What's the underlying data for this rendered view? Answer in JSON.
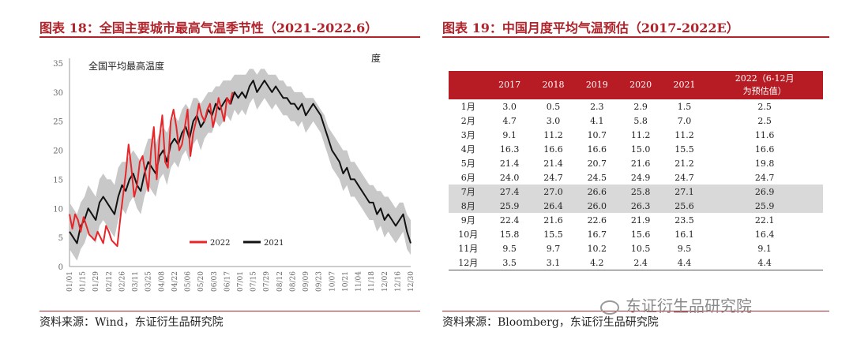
{
  "left": {
    "title": "图表 18：全国主要城市最高气温季节性（2021-2022.6）",
    "source": "资料来源：Wind，东证衍生品研究院"
  },
  "right": {
    "title": "图表 19：中国月度平均气温预估（2017-2022E）",
    "source": "资料来源：Bloomberg，东证衍生品研究院"
  },
  "watermark": "东证衍生品研究院",
  "chart_data": [
    {
      "type": "line",
      "title": "全国平均最高温度",
      "ylabel": "度",
      "ylim": [
        0,
        35
      ],
      "yticks": [
        0,
        5,
        10,
        15,
        20,
        25,
        30,
        35
      ],
      "xticks": [
        "01/01",
        "01/15",
        "01/29",
        "02/12",
        "02/26",
        "03/11",
        "03/25",
        "04/08",
        "04/22",
        "05/06",
        "05/20",
        "06/03",
        "06/17",
        "07/01",
        "07/15",
        "07/29",
        "08/12",
        "08/26",
        "09/09",
        "09/23",
        "10/07",
        "10/21",
        "11/04",
        "11/18",
        "12/02",
        "12/16",
        "12/30"
      ],
      "legend": [
        "2022",
        "2021"
      ],
      "colors": {
        "2022": "#e8262a",
        "2021": "#111111",
        "range": "#c8c8c8"
      },
      "series": [
        {
          "name": "2022",
          "x": [
            0,
            3,
            6,
            9,
            12,
            15,
            18,
            21,
            24,
            27,
            30,
            33,
            36,
            39,
            42,
            45,
            48,
            51,
            54,
            57,
            60,
            63,
            66,
            69,
            72,
            75,
            78,
            81,
            84,
            87,
            90,
            93,
            96,
            99,
            102,
            105,
            108,
            111,
            114,
            117,
            120,
            123,
            126,
            129,
            132,
            135,
            138,
            141,
            144,
            147,
            150,
            153,
            156,
            159,
            162,
            165,
            168,
            171,
            174
          ],
          "values": [
            9,
            6.5,
            9,
            8,
            6,
            8.5,
            7,
            5.5,
            5,
            4.5,
            6,
            5,
            4,
            7,
            6,
            4.5,
            4,
            3.5,
            8,
            12,
            16,
            21,
            17,
            12,
            14,
            18,
            19,
            16,
            13,
            20,
            24,
            15,
            22,
            26,
            18,
            17,
            25,
            27,
            24,
            20,
            21,
            24,
            27,
            19,
            23,
            25,
            28,
            26,
            25,
            27,
            28,
            24,
            26,
            29,
            27,
            25,
            29,
            28,
            30
          ]
        },
        {
          "name": "2021",
          "x": [
            0,
            4,
            8,
            12,
            16,
            20,
            24,
            28,
            32,
            36,
            40,
            44,
            48,
            52,
            56,
            60,
            64,
            68,
            72,
            76,
            80,
            84,
            88,
            92,
            96,
            100,
            104,
            108,
            112,
            116,
            120,
            124,
            128,
            132,
            136,
            140,
            144,
            148,
            152,
            156,
            160,
            164,
            168,
            172,
            176,
            180,
            184,
            188,
            192,
            196,
            200,
            204,
            208,
            212,
            216,
            220,
            224,
            228,
            232,
            236,
            240,
            244,
            248,
            252,
            256,
            260,
            264,
            268,
            272,
            276,
            280,
            284,
            288,
            292,
            296,
            300,
            304,
            308,
            312,
            316,
            320,
            324,
            328,
            332,
            336,
            340,
            344,
            348,
            352,
            356,
            360,
            364
          ],
          "values": [
            6,
            5,
            4,
            7,
            8,
            10,
            9,
            8,
            11,
            12,
            11,
            10,
            9,
            12,
            14,
            13,
            15,
            16,
            14,
            13,
            16,
            18,
            17,
            16,
            19,
            20,
            18,
            21,
            22,
            21,
            23,
            24,
            22,
            25,
            26,
            24,
            25,
            27,
            26,
            28,
            27,
            28,
            29,
            28,
            30,
            29,
            30,
            29,
            31,
            32,
            30,
            31,
            32,
            31,
            30,
            31,
            30,
            29,
            29,
            28,
            28,
            27,
            28,
            26,
            27,
            28,
            27,
            26,
            24,
            22,
            20,
            19,
            18,
            16,
            17,
            15,
            15,
            14,
            13,
            12,
            11,
            11,
            9,
            10,
            8,
            9,
            8,
            7,
            8,
            9,
            6,
            4
          ]
        },
        {
          "name": "range",
          "upper": [
            11,
            10,
            9,
            11,
            12,
            14,
            13,
            12,
            15,
            16,
            15,
            15,
            14,
            17,
            18,
            18,
            19,
            20,
            19,
            18,
            20,
            22,
            22,
            21,
            23,
            24,
            23,
            25,
            26,
            25,
            27,
            28,
            27,
            29,
            29,
            28,
            29,
            30,
            30,
            31,
            31,
            32,
            32,
            32,
            33,
            33,
            33,
            33,
            34,
            34,
            33,
            34,
            34,
            33,
            33,
            33,
            32,
            32,
            31,
            31,
            30,
            30,
            30,
            29,
            29,
            29,
            28,
            27,
            26,
            24,
            23,
            22,
            21,
            20,
            20,
            18,
            18,
            17,
            16,
            15,
            14,
            14,
            13,
            13,
            12,
            12,
            11,
            10,
            11,
            11,
            9,
            8
          ],
          "lower": [
            3,
            2,
            1,
            3,
            4,
            6,
            5,
            4,
            7,
            8,
            7,
            6,
            5,
            8,
            10,
            9,
            11,
            12,
            10,
            9,
            12,
            14,
            13,
            12,
            15,
            16,
            14,
            17,
            18,
            17,
            19,
            20,
            18,
            21,
            22,
            20,
            22,
            23,
            23,
            25,
            24,
            25,
            26,
            25,
            27,
            26,
            27,
            26,
            28,
            29,
            27,
            28,
            29,
            28,
            27,
            28,
            27,
            26,
            26,
            25,
            25,
            24,
            25,
            23,
            24,
            25,
            24,
            23,
            21,
            19,
            17,
            16,
            15,
            13,
            14,
            12,
            12,
            11,
            10,
            9,
            8,
            8,
            6,
            7,
            5,
            6,
            5,
            4,
            5,
            6,
            3,
            2
          ]
        }
      ]
    },
    {
      "type": "table",
      "columns": [
        "",
        "2017",
        "2018",
        "2019",
        "2020",
        "2021",
        "2022（6-12月为预估值）"
      ],
      "rows": [
        [
          "1月",
          "3.0",
          "0.5",
          "2.3",
          "2.9",
          "1.5",
          "2.5"
        ],
        [
          "2月",
          "4.7",
          "3.0",
          "4.1",
          "5.8",
          "7.0",
          "2.5"
        ],
        [
          "3月",
          "9.1",
          "11.2",
          "10.7",
          "11.2",
          "11.2",
          "11.6"
        ],
        [
          "4月",
          "16.3",
          "16.6",
          "16.6",
          "15.0",
          "15.5",
          "16.6"
        ],
        [
          "5月",
          "21.4",
          "21.4",
          "20.7",
          "21.6",
          "21.2",
          "19.8"
        ],
        [
          "6月",
          "24.0",
          "24.7",
          "24.5",
          "24.9",
          "24.7",
          "24.7"
        ],
        [
          "7月",
          "27.4",
          "27.0",
          "26.6",
          "25.8",
          "27.1",
          "26.9"
        ],
        [
          "8月",
          "25.9",
          "26.4",
          "26.0",
          "26.3",
          "25.6",
          "25.9"
        ],
        [
          "9月",
          "22.4",
          "21.6",
          "22.6",
          "21.9",
          "23.5",
          "22.1"
        ],
        [
          "10月",
          "15.8",
          "15.5",
          "16.7",
          "15.6",
          "16.1",
          "16.4"
        ],
        [
          "11月",
          "9.5",
          "9.7",
          "10.2",
          "10.5",
          "9.5",
          "9.1"
        ],
        [
          "12月",
          "3.5",
          "3.1",
          "4.2",
          "2.4",
          "4.4",
          "4.4"
        ]
      ],
      "shaded_rows": [
        6,
        7
      ],
      "header_line2": [
        "2022（6-12月",
        "为预估值）"
      ]
    }
  ]
}
